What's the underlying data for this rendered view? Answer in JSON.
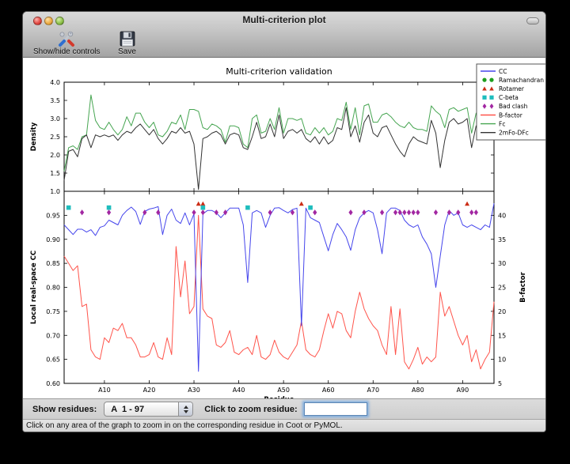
{
  "window": {
    "title": "Multi-criterion plot"
  },
  "toolbar": {
    "buttons": [
      {
        "label": "Show/hide controls",
        "icon": "tools-icon"
      },
      {
        "label": "Save",
        "icon": "save-icon"
      }
    ]
  },
  "controls": {
    "show_residues_label": "Show residues:",
    "residue_range_value": "A  1 - 97",
    "zoom_residue_label": "Click to zoom residue:",
    "zoom_input_value": ""
  },
  "status_bar": {
    "text": "Click on any area of the graph to zoom in on the corresponding residue in Coot or PyMOL."
  },
  "chart_data": {
    "suptitle": "Multi-criterion validation",
    "x": {
      "label": "Residue",
      "range": [
        1,
        97
      ],
      "tick_positions": [
        10,
        20,
        30,
        40,
        50,
        60,
        70,
        80,
        90
      ],
      "tick_labels": [
        "A10",
        "A20",
        "A30",
        "A40",
        "A50",
        "A60",
        "A70",
        "A80",
        "A90"
      ]
    },
    "top": {
      "type": "line",
      "ylabel": "Density",
      "ylim": [
        1.0,
        4.0
      ],
      "ytick_values": [
        1.0,
        1.5,
        2.0,
        2.5,
        3.0,
        3.5,
        4.0
      ],
      "ytick_labels": [
        "1.0",
        "1.5",
        "2.0",
        "2.5",
        "3.0",
        "3.5",
        "4.0"
      ],
      "series": [
        {
          "name": "Fc",
          "color": "#46a551",
          "values": [
            1.55,
            2.2,
            2.25,
            2.15,
            2.5,
            2.55,
            3.65,
            2.95,
            2.75,
            2.7,
            2.9,
            2.7,
            2.55,
            2.7,
            3.05,
            2.8,
            3.15,
            3.15,
            2.9,
            2.75,
            2.9,
            2.55,
            2.5,
            2.65,
            2.9,
            2.85,
            3.1,
            2.7,
            3.25,
            3.25,
            3.2,
            2.75,
            2.7,
            2.85,
            2.8,
            2.7,
            2.35,
            2.8,
            2.8,
            2.75,
            2.3,
            2.2,
            3.0,
            3.1,
            2.6,
            2.65,
            3.0,
            2.7,
            3.3,
            2.6,
            3.0,
            3.0,
            2.95,
            3.0,
            2.6,
            2.55,
            2.75,
            2.6,
            2.75,
            2.55,
            2.65,
            3.0,
            2.95,
            3.45,
            2.7,
            3.3,
            2.55,
            3.35,
            3.4,
            2.9,
            2.9,
            3.1,
            3.15,
            3.05,
            2.9,
            2.8,
            2.75,
            2.9,
            2.75,
            2.7,
            2.7,
            2.65,
            3.35,
            3.2,
            3.1,
            2.75,
            3.25,
            3.3,
            3.2,
            3.25,
            3.3,
            2.6,
            3.15,
            3.1,
            3.05,
            3.1,
            3.5
          ]
        },
        {
          "name": "2mFo-DFc",
          "color": "#333333",
          "values": [
            1.3,
            2.1,
            2.15,
            1.95,
            2.45,
            2.55,
            2.2,
            2.55,
            2.5,
            2.55,
            2.5,
            2.55,
            2.4,
            2.55,
            2.65,
            2.6,
            2.75,
            2.85,
            2.7,
            2.55,
            2.7,
            2.45,
            2.3,
            2.45,
            2.65,
            2.6,
            2.75,
            2.6,
            2.65,
            2.3,
            1.05,
            2.45,
            2.5,
            2.6,
            2.65,
            2.55,
            2.3,
            2.55,
            2.6,
            2.55,
            2.2,
            2.15,
            2.5,
            2.9,
            2.45,
            2.5,
            2.85,
            2.5,
            3.1,
            2.45,
            2.65,
            2.7,
            2.6,
            2.7,
            2.45,
            2.35,
            2.5,
            2.3,
            2.5,
            2.3,
            2.4,
            2.75,
            2.7,
            3.3,
            2.5,
            2.8,
            2.35,
            2.9,
            3.1,
            2.6,
            2.5,
            2.75,
            2.8,
            2.55,
            2.3,
            2.1,
            1.95,
            2.3,
            2.5,
            2.4,
            2.35,
            2.3,
            2.95,
            2.6,
            1.65,
            2.4,
            2.9,
            3.0,
            2.85,
            2.9,
            3.0,
            2.2,
            2.8,
            2.85,
            2.7,
            2.8,
            2.85
          ]
        }
      ]
    },
    "bottom": {
      "type": "line+scatter",
      "ylabel_left": "Local real-space CC",
      "ylim_left": [
        0.6,
        1.0
      ],
      "ytick_values_left": [
        0.6,
        0.65,
        0.7,
        0.75,
        0.8,
        0.85,
        0.9,
        0.95
      ],
      "ytick_labels_left": [
        "0.60",
        "0.65",
        "0.70",
        "0.75",
        "0.80",
        "0.85",
        "0.90",
        "0.95"
      ],
      "ylabel_right": "B-factor",
      "ylim_right": [
        5,
        45
      ],
      "ytick_values_right": [
        5,
        10,
        15,
        20,
        25,
        30,
        35,
        40
      ],
      "ytick_labels_right": [
        "5",
        "10",
        "15",
        "20",
        "25",
        "30",
        "35",
        "40"
      ],
      "series": [
        {
          "name": "CC",
          "axis": "left",
          "color": "#4646ec",
          "values": [
            0.93,
            0.92,
            0.91,
            0.921,
            0.921,
            0.915,
            0.92,
            0.908,
            0.925,
            0.928,
            0.94,
            0.935,
            0.93,
            0.95,
            0.96,
            0.967,
            0.958,
            0.931,
            0.958,
            0.963,
            0.965,
            0.968,
            0.91,
            0.95,
            0.963,
            0.94,
            0.933,
            0.955,
            0.93,
            0.953,
            0.625,
            0.953,
            0.96,
            0.96,
            0.955,
            0.945,
            0.955,
            0.965,
            0.965,
            0.965,
            0.93,
            0.81,
            0.955,
            0.96,
            0.955,
            0.925,
            0.95,
            0.965,
            0.966,
            0.96,
            0.955,
            0.962,
            0.965,
            0.72,
            0.965,
            0.945,
            0.94,
            0.935,
            0.905,
            0.876,
            0.91,
            0.933,
            0.92,
            0.905,
            0.877,
            0.92,
            0.945,
            0.955,
            0.96,
            0.955,
            0.92,
            0.87,
            0.955,
            0.965,
            0.965,
            0.96,
            0.94,
            0.93,
            0.925,
            0.93,
            0.905,
            0.89,
            0.87,
            0.8,
            0.865,
            0.93,
            0.96,
            0.95,
            0.955,
            0.93,
            0.925,
            0.93,
            0.925,
            0.92,
            0.93,
            0.925,
            0.975
          ]
        },
        {
          "name": "B-factor",
          "axis": "right",
          "color": "#ff544b",
          "values": [
            31.5,
            30,
            28.5,
            29.5,
            21,
            21.5,
            12,
            10.5,
            10,
            14.5,
            13.5,
            16.5,
            16,
            17.5,
            14.5,
            14.5,
            13,
            10.5,
            10.5,
            11,
            13.5,
            10.5,
            10,
            14.5,
            11,
            33.5,
            23,
            30.5,
            19.5,
            21,
            40,
            20.5,
            19,
            18.5,
            13,
            12.5,
            13.5,
            16,
            11.5,
            11,
            12,
            12.5,
            11,
            15,
            10.5,
            10,
            11,
            14,
            11.5,
            10.5,
            10,
            11.5,
            13,
            18,
            12,
            11,
            10.5,
            12,
            16,
            19.5,
            16.5,
            20,
            19.5,
            16,
            14.5,
            20,
            24,
            20.5,
            18.5,
            17,
            16,
            13,
            11,
            21,
            11,
            20.5,
            9.5,
            8,
            10,
            12.5,
            9,
            10.5,
            9.5,
            10.5,
            24,
            19,
            21,
            18,
            15,
            13,
            15,
            9.5,
            12,
            8,
            10,
            11.5,
            22
          ]
        }
      ],
      "markers": [
        {
          "name": "Ramachandran",
          "shape": "circle",
          "color": "#1e9e1e",
          "y": 0.982,
          "residues": []
        },
        {
          "name": "Rotamer",
          "shape": "triangle",
          "color": "#cc2d16",
          "y": 0.974,
          "residues": [
            31,
            32,
            54,
            91
          ]
        },
        {
          "name": "C-beta",
          "shape": "square",
          "color": "#1fbdbd",
          "y": 0.966,
          "residues": [
            2,
            11,
            32,
            42,
            56
          ]
        },
        {
          "name": "Bad clash",
          "shape": "diamond",
          "color": "#a227a2",
          "y": 0.956,
          "residues": [
            5,
            11,
            19,
            22,
            30,
            32,
            35,
            37,
            47,
            52,
            57,
            65,
            68,
            72,
            75,
            76,
            77,
            78,
            79,
            80,
            84,
            87,
            89,
            92,
            93
          ]
        }
      ]
    },
    "legend": {
      "position": "upper right",
      "entries": [
        {
          "label": "CC",
          "type": "line",
          "color": "#4646ec"
        },
        {
          "label": "Ramachandran",
          "type": "circle",
          "color": "#1e9e1e"
        },
        {
          "label": "Rotamer",
          "type": "triangle",
          "color": "#cc2d16"
        },
        {
          "label": "C-beta",
          "type": "square",
          "color": "#1fbdbd"
        },
        {
          "label": "Bad clash",
          "type": "diamond",
          "color": "#a227a2"
        },
        {
          "label": "B-factor",
          "type": "line",
          "color": "#ff544b"
        },
        {
          "label": "Fc",
          "type": "line",
          "color": "#46a551"
        },
        {
          "label": "2mFo-DFc",
          "type": "line",
          "color": "#333333"
        }
      ]
    }
  }
}
